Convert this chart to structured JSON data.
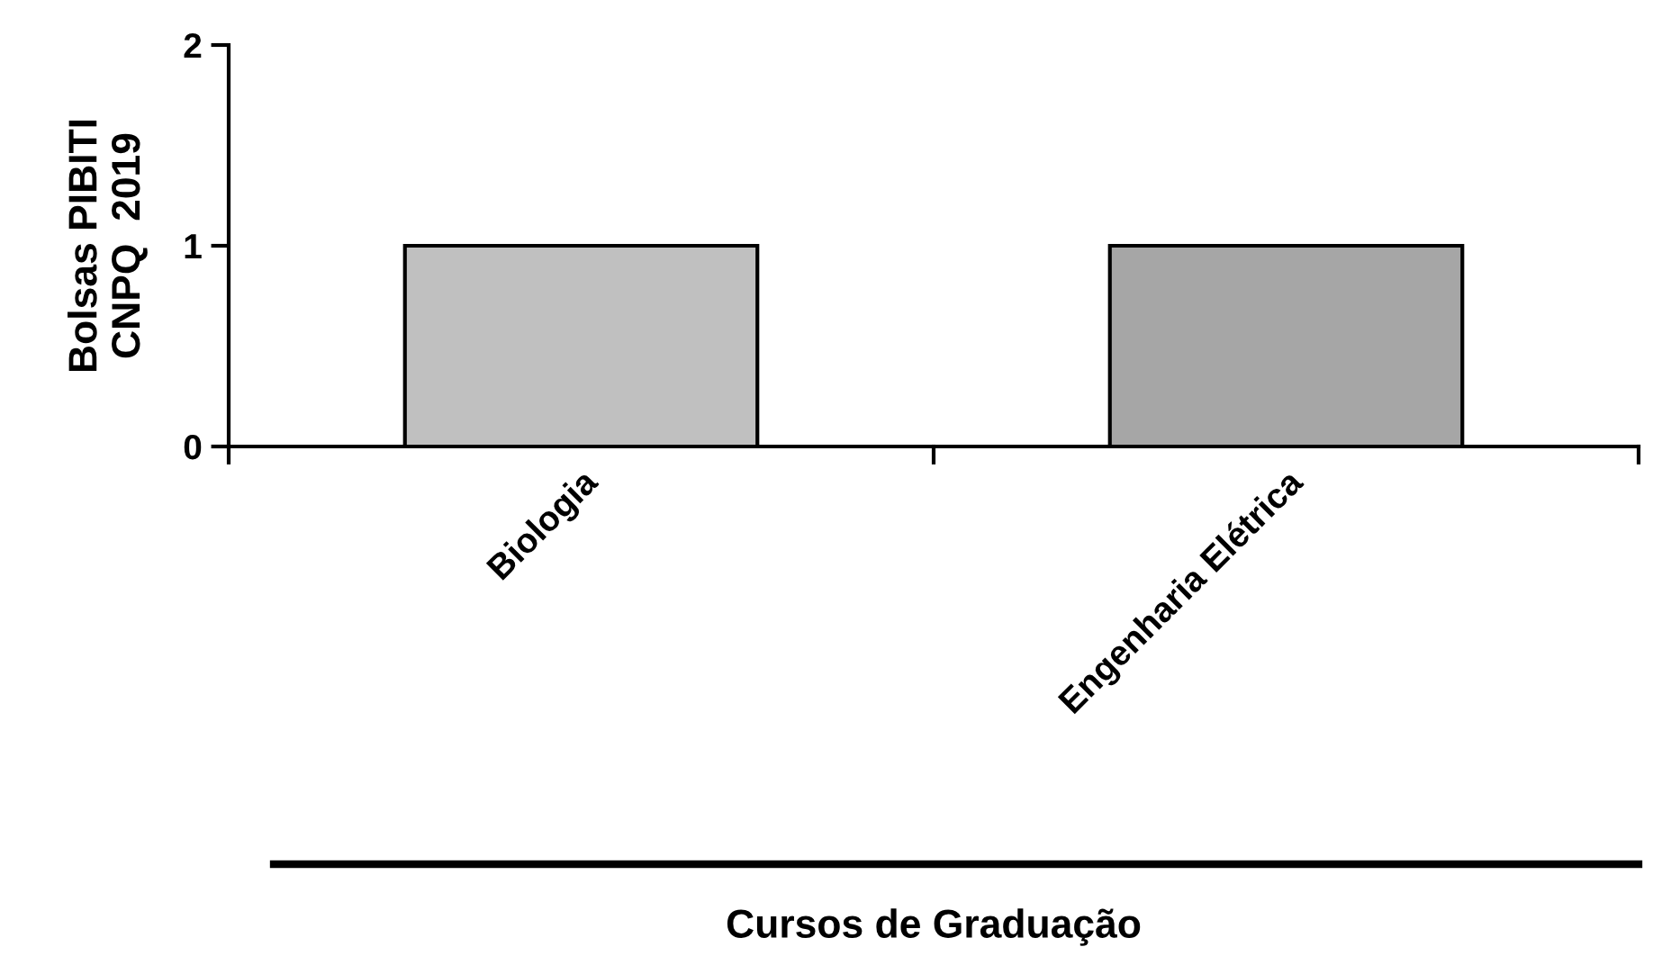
{
  "chart_data": {
    "type": "bar",
    "xlabel": "Cursos de Graduação",
    "ylabel": "Bolsas PIBITI\nCNPQ  2019",
    "categories": [
      "Biologia",
      "Engenharia Elétrica"
    ],
    "values": [
      1,
      1
    ],
    "colors": [
      "#c0c0c0",
      "#a6a6a6"
    ],
    "ylim": [
      0,
      2
    ],
    "yticks": [
      0,
      1,
      2
    ],
    "grid": false,
    "legend": false
  }
}
